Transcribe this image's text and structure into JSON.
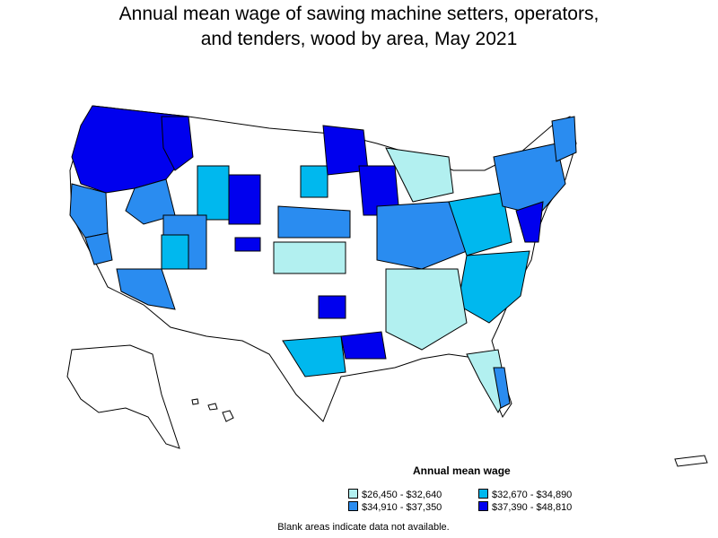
{
  "title_line1": "Annual mean wage of sawing machine setters, operators,",
  "title_line2": "and tenders, wood by area, May 2021",
  "legend": {
    "title": "Annual mean wage",
    "items": [
      {
        "label": "$26,450 - $32,640",
        "color": "#b2f0f0"
      },
      {
        "label": "$32,670 - $34,890",
        "color": "#00b8ee"
      },
      {
        "label": "$34,910 - $37,350",
        "color": "#2a8cf0"
      },
      {
        "label": "$37,390 - $48,810",
        "color": "#0000ee"
      }
    ]
  },
  "note": "Blank areas indicate data not available.",
  "map_fill_colors": {
    "blank": "#ffffff",
    "light": "#b2f0f0",
    "mid": "#00b8ee",
    "blue": "#2a8cf0",
    "dark": "#0000ee"
  }
}
